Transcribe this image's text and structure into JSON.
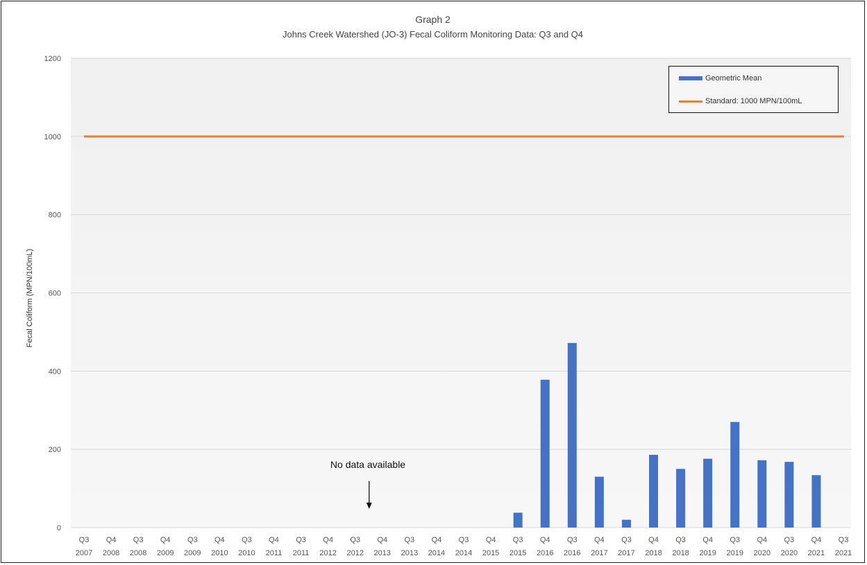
{
  "chart_data": {
    "type": "bar",
    "title": "Graph 2",
    "subtitle": "Johns Creek Watershed (JO-3) Fecal Coliform Monitoring Data: Q3 and Q4",
    "ylabel": "Fecal Coliform (MPN/100mL)",
    "xlabel": "",
    "ylim": [
      0,
      1200
    ],
    "yticks": [
      "0",
      "200",
      "400",
      "600",
      "800",
      "1000",
      "1200"
    ],
    "grid": true,
    "legend_position": "top-right",
    "categories": [
      [
        "Q3",
        "2007"
      ],
      [
        "Q4",
        "2008"
      ],
      [
        "Q3",
        "2008"
      ],
      [
        "Q4",
        "2009"
      ],
      [
        "Q3",
        "2009"
      ],
      [
        "Q4",
        "2010"
      ],
      [
        "Q3",
        "2010"
      ],
      [
        "Q4",
        "2011"
      ],
      [
        "Q3",
        "2011"
      ],
      [
        "Q4",
        "2012"
      ],
      [
        "Q3",
        "2012"
      ],
      [
        "Q4",
        "2013"
      ],
      [
        "Q3",
        "2013"
      ],
      [
        "Q4",
        "2014"
      ],
      [
        "Q3",
        "2014"
      ],
      [
        "Q4",
        "2015"
      ],
      [
        "Q3",
        "2015"
      ],
      [
        "Q4",
        "2016"
      ],
      [
        "Q3",
        "2016"
      ],
      [
        "Q4",
        "2017"
      ],
      [
        "Q3",
        "2017"
      ],
      [
        "Q4",
        "2018"
      ],
      [
        "Q3",
        "2018"
      ],
      [
        "Q4",
        "2019"
      ],
      [
        "Q3",
        "2019"
      ],
      [
        "Q4",
        "2020"
      ],
      [
        "Q3",
        "2020"
      ],
      [
        "Q4",
        "2021"
      ],
      [
        "Q3",
        "2021"
      ]
    ],
    "series": [
      {
        "name": "Geometric Mean",
        "color": "#4472c4",
        "values": [
          null,
          null,
          null,
          null,
          null,
          null,
          null,
          null,
          null,
          null,
          null,
          null,
          null,
          null,
          null,
          null,
          38,
          378,
          472,
          130,
          20,
          186,
          150,
          176,
          270,
          172,
          168,
          134,
          null
        ]
      },
      {
        "name": "Standard: 1000 MPN/100mL",
        "color": "#ed7d31",
        "type": "line",
        "value": 1000
      }
    ],
    "annotations": [
      {
        "text": "No data available",
        "category_index": 11,
        "arrow": "down"
      }
    ]
  }
}
